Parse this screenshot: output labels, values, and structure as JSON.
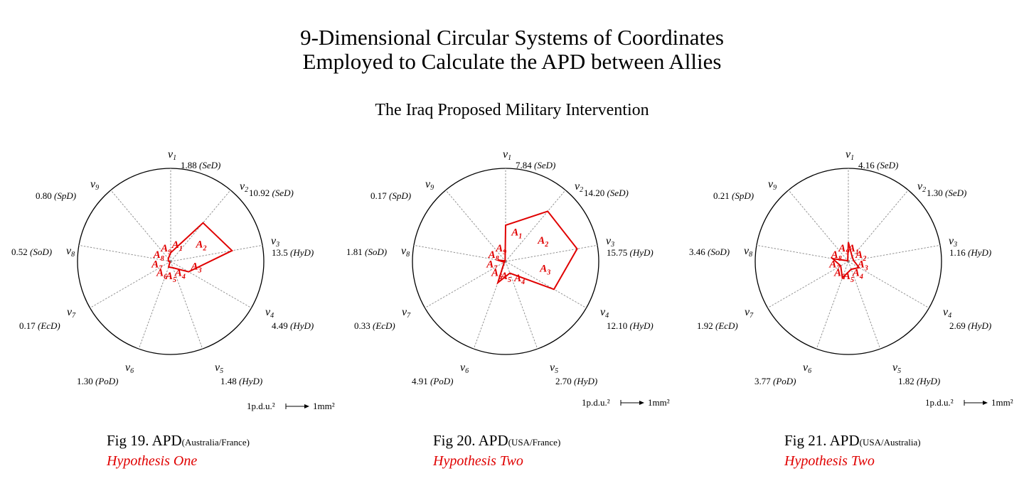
{
  "header": {
    "title_line1": "9-Dimensional Circular Systems of Coordinates",
    "title_line2": "Employed to Calculate the APD between Allies",
    "subtitle": "The Iraq Proposed Military Intervention"
  },
  "colors": {
    "polygon": "#e00000",
    "axis": "#888888",
    "circle": "#000000"
  },
  "diagrams": [
    {
      "fig": "Fig 19. APD",
      "fig_sub": "(Australia/France)",
      "hypothesis": "Hypothesis One",
      "scale_left": "1p.d.u.²",
      "scale_right": "1mm²",
      "values": [
        1.88,
        10.92,
        13.5,
        4.49,
        1.48,
        1.3,
        0.17,
        0.52,
        0.8
      ],
      "value_labels": [
        "1.88",
        "10.92",
        "13.5",
        "4.49",
        "1.48",
        "1.30",
        "0.17",
        "0.52",
        "0.80"
      ],
      "dims": [
        "(SeD)",
        "(SeD)",
        "(HyD)",
        "(HyD)",
        "(HyD)",
        "(PoD)",
        "(EcD)",
        "(SoD)",
        "(SpD)"
      ]
    },
    {
      "fig": "Fig 20. APD",
      "fig_sub": "(USA/France)",
      "hypothesis": "Hypothesis Two",
      "scale_left": "1p.d.u.²",
      "scale_right": "1mm²",
      "values": [
        7.84,
        14.2,
        15.75,
        12.1,
        2.7,
        4.91,
        0.33,
        1.81,
        0.17
      ],
      "value_labels": [
        "7.84",
        "14.20",
        "15.75",
        "12.10",
        "2.70",
        "4.91",
        "0.33",
        "1.81",
        "0.17"
      ],
      "dims": [
        "(SeD)",
        "(SeD)",
        "(HyD)",
        "(HyD)",
        "(HyD)",
        "(PoD)",
        "(EcD)",
        "(SoD)",
        "(SpD)"
      ]
    },
    {
      "fig": "Fig 21. APD",
      "fig_sub": "(USA/Australia)",
      "hypothesis": "Hypothesis Two",
      "scale_left": "1p.d.u.²",
      "scale_right": "1mm²",
      "values": [
        4.16,
        1.3,
        1.16,
        2.69,
        1.82,
        3.77,
        1.92,
        3.46,
        0.21
      ],
      "value_labels": [
        "4.16",
        "1.30",
        "1.16",
        "2.69",
        "1.82",
        "3.77",
        "1.92",
        "3.46",
        "0.21"
      ],
      "dims": [
        "(SeD)",
        "(SeD)",
        "(HyD)",
        "(HyD)",
        "(HyD)",
        "(PoD)",
        "(EcD)",
        "(SoD)",
        "(SpD)"
      ]
    }
  ],
  "vertex_labels": [
    "v",
    "v",
    "v",
    "v",
    "v",
    "v",
    "v",
    "v",
    "v"
  ],
  "vertex_indices": [
    "1",
    "2",
    "3",
    "4",
    "5",
    "6",
    "7",
    "8",
    "9"
  ],
  "area_letter": "A",
  "area_indices": [
    "1",
    "2",
    "3",
    "4",
    "5",
    "6",
    "7",
    "8",
    "9"
  ]
}
